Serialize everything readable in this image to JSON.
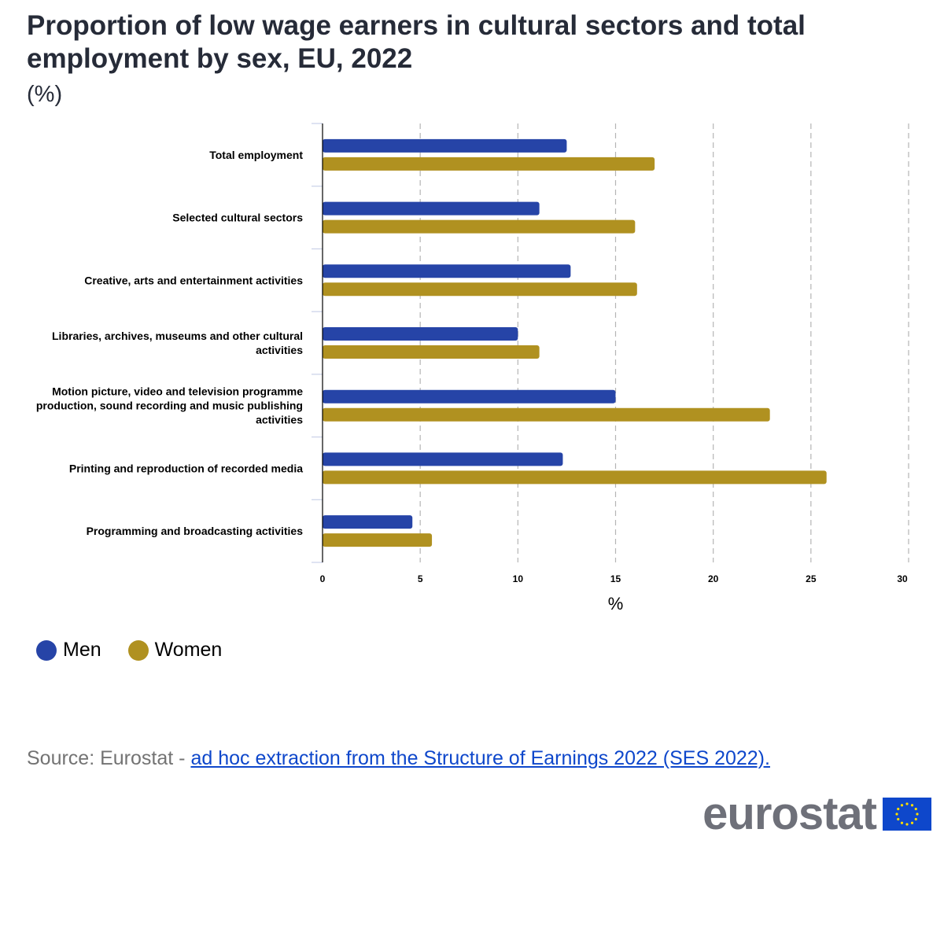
{
  "title": "Proportion of low wage earners in cultural sectors and total employment by sex, EU, 2022",
  "subtitle": "(%)",
  "legend": [
    {
      "name": "Men",
      "color": "#2644a7"
    },
    {
      "name": "Women",
      "color": "#b09120"
    }
  ],
  "source": {
    "prefix": "Source: Eurostat - ",
    "link_text": "ad hoc extraction from the Structure of Earnings 2022 (SES 2022)."
  },
  "logo": {
    "text": "eurostat",
    "icon": "eu-flag-icon"
  },
  "chart_data": {
    "type": "bar",
    "orientation": "horizontal",
    "categories": [
      [
        "Total employment"
      ],
      [
        "Selected cultural sectors"
      ],
      [
        "Creative, arts and entertainment activities"
      ],
      [
        "Libraries, archives, museums and other cultural",
        "activities"
      ],
      [
        "Motion picture, video and television programme",
        "production, sound recording and music publishing",
        "activities"
      ],
      [
        "Printing and reproduction of recorded media"
      ],
      [
        "Programming and broadcasting activities"
      ]
    ],
    "series": [
      {
        "name": "Men",
        "color": "#2644a7",
        "values": [
          12.5,
          11.1,
          12.7,
          10.0,
          15.0,
          12.3,
          4.6
        ]
      },
      {
        "name": "Women",
        "color": "#b09120",
        "values": [
          17.0,
          16.0,
          16.1,
          11.1,
          22.9,
          25.8,
          5.6
        ]
      }
    ],
    "xlabel": "%",
    "xlim": [
      0,
      30
    ],
    "xticks": [
      0,
      5,
      10,
      15,
      20,
      25,
      30
    ],
    "grid": true
  }
}
